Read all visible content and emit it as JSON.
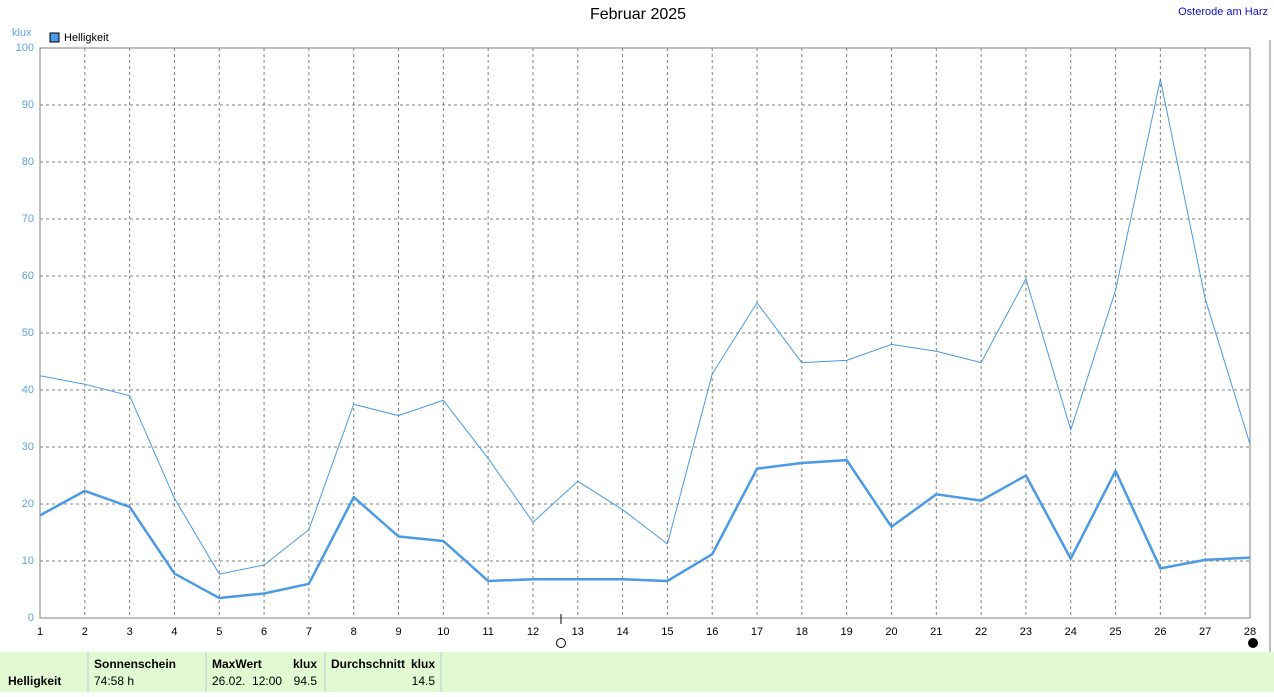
{
  "chart_data": {
    "type": "line",
    "title": "Februar 2025",
    "location": "Osterode am Harz",
    "y_label": "klux",
    "x": [
      1,
      2,
      3,
      4,
      5,
      6,
      7,
      8,
      9,
      10,
      11,
      12,
      13,
      14,
      15,
      16,
      17,
      18,
      19,
      20,
      21,
      22,
      23,
      24,
      25,
      26,
      27,
      28
    ],
    "xlim": [
      1,
      28
    ],
    "xticks": [
      1,
      2,
      3,
      4,
      5,
      6,
      7,
      8,
      9,
      10,
      11,
      12,
      13,
      14,
      15,
      16,
      17,
      18,
      19,
      20,
      21,
      22,
      23,
      24,
      25,
      26,
      27,
      28
    ],
    "ylim": [
      0,
      100
    ],
    "yticks": [
      0,
      10,
      20,
      30,
      40,
      50,
      60,
      70,
      80,
      90,
      100
    ],
    "grid": true,
    "legend": "top-left",
    "series": [
      {
        "name": "Helligkeit",
        "color": "#4a9ae6",
        "width": 2.5,
        "values": [
          18,
          22.3,
          19.5,
          7.8,
          3.5,
          4.3,
          6,
          21.2,
          14.3,
          13.5,
          6.5,
          6.8,
          6.8,
          6.8,
          6.5,
          11.2,
          26.2,
          27.2,
          27.7,
          16,
          21.7,
          20.6,
          25,
          10.4,
          25.8,
          8.7,
          10.2,
          10.6
        ]
      },
      {
        "color": "#4a9ae6",
        "width": 1,
        "values": [
          42.5,
          41,
          39,
          21,
          7.7,
          9.3,
          15.5,
          37.5,
          35.5,
          38.2,
          28,
          16.8,
          24,
          19,
          13,
          42.8,
          55.3,
          44.8,
          45.2,
          48,
          46.8,
          44.8,
          59.5,
          33,
          57.5,
          94.5,
          56,
          30.5
        ]
      }
    ]
  },
  "summary": {
    "row_label": "Helligkeit",
    "sunshine_header": "Sonnenschein",
    "sunshine": "74:58 h",
    "max_header": "MaxWert",
    "max_unit": "klux",
    "max_time": "26.02.  12:00",
    "max_value": "94.5",
    "avg_header": "Durchschnitt",
    "avg_unit": "klux",
    "avg_value": "14.5"
  }
}
